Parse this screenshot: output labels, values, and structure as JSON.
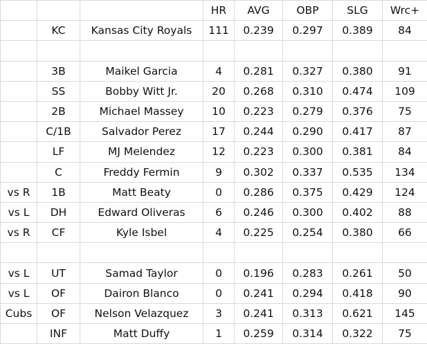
{
  "table": {
    "header": [
      "HR",
      "AVG",
      "OBP",
      "SLG",
      "Wrc+"
    ],
    "groups": [
      [
        {
          "pos": "KC",
          "name": "Kansas City Royals",
          "stats": [
            "111",
            "0.239",
            "0.297",
            "0.389",
            "84"
          ]
        }
      ],
      [
        {
          "pos": "3B",
          "name": "Maikel Garcia",
          "stats": [
            "4",
            "0.281",
            "0.327",
            "0.380",
            "91"
          ]
        },
        {
          "pos": "SS",
          "name": "Bobby Witt Jr.",
          "stats": [
            "20",
            "0.268",
            "0.310",
            "0.474",
            "109"
          ]
        },
        {
          "pos": "2B",
          "name": "Michael Massey",
          "stats": [
            "10",
            "0.223",
            "0.279",
            "0.376",
            "75"
          ]
        },
        {
          "pos": "C/1B",
          "name": "Salvador Perez",
          "stats": [
            "17",
            "0.244",
            "0.290",
            "0.417",
            "87"
          ]
        },
        {
          "pos": "LF",
          "name": "MJ Melendez",
          "stats": [
            "12",
            "0.223",
            "0.300",
            "0.381",
            "84"
          ]
        },
        {
          "pos": "C",
          "name": "Freddy Fermin",
          "stats": [
            "9",
            "0.302",
            "0.337",
            "0.535",
            "134"
          ]
        },
        {
          "split": "vs R",
          "pos": "1B",
          "name": "Matt Beaty",
          "stats": [
            "0",
            "0.286",
            "0.375",
            "0.429",
            "124"
          ]
        },
        {
          "split": "vs L",
          "pos": "DH",
          "name": "Edward Oliveras",
          "stats": [
            "6",
            "0.246",
            "0.300",
            "0.402",
            "88"
          ]
        },
        {
          "split": "vs R",
          "pos": "CF",
          "name": "Kyle Isbel",
          "stats": [
            "4",
            "0.225",
            "0.254",
            "0.380",
            "66"
          ]
        }
      ],
      [
        {
          "split": "vs L",
          "pos": "UT",
          "name": "Samad Taylor",
          "stats": [
            "0",
            "0.196",
            "0.283",
            "0.261",
            "50"
          ]
        },
        {
          "split": "vs L",
          "pos": "OF",
          "name": "Dairon Blanco",
          "stats": [
            "0",
            "0.241",
            "0.294",
            "0.418",
            "90"
          ]
        },
        {
          "split": "Cubs",
          "pos": "OF",
          "name": "Nelson Velazquez",
          "stats": [
            "3",
            "0.241",
            "0.313",
            "0.621",
            "145"
          ]
        },
        {
          "pos": "INF",
          "name": "Matt Duffy",
          "stats": [
            "1",
            "0.259",
            "0.314",
            "0.322",
            "75"
          ]
        }
      ]
    ]
  }
}
